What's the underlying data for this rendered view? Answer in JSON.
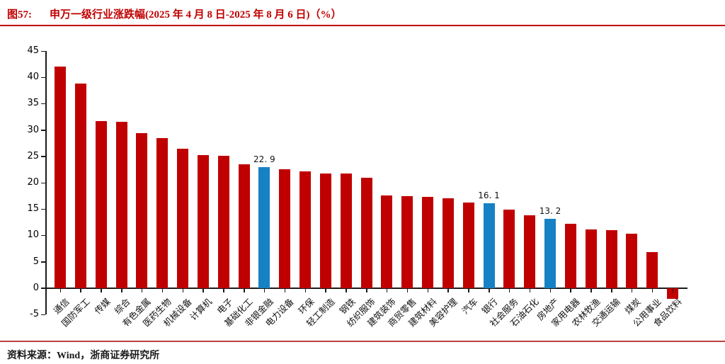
{
  "header": {
    "figure_label": "图57:",
    "title": "申万一级行业涨跌幅(2025 年 4 月 8 日-2025 年 8 月 6 日)（%）"
  },
  "footer": {
    "source": "资料来源：Wind，浙商证券研究所"
  },
  "colors": {
    "bar_red": "#C00000",
    "bar_blue": "#1681C4",
    "title_red": "#C00000",
    "top_rule": "#C00000",
    "bottom_rule": "#BE4040",
    "axis": "#1a1a1a"
  },
  "chart_data": {
    "type": "bar",
    "title": "申万一级行业涨跌幅(2025年4月8日-2025年8月6日)(%)",
    "xlabel": "",
    "ylabel": "",
    "ylim": [
      -5,
      45
    ],
    "ytick_step": 5,
    "grid": false,
    "legend": "none",
    "categories": [
      "通信",
      "国防军工",
      "传媒",
      "综合",
      "有色金属",
      "医药生物",
      "机械设备",
      "计算机",
      "电子",
      "基础化工",
      "非银金融",
      "电力设备",
      "环保",
      "轻工制造",
      "钢铁",
      "纺织服饰",
      "建筑装饰",
      "商贸零售",
      "建筑材料",
      "美容护理",
      "汽车",
      "银行",
      "社会服务",
      "石油石化",
      "房地产",
      "家用电器",
      "农林牧渔",
      "交通运输",
      "煤炭",
      "公用事业",
      "食品饮料"
    ],
    "values": [
      42.0,
      38.8,
      31.7,
      31.6,
      29.4,
      28.5,
      26.4,
      25.2,
      25.1,
      23.5,
      22.9,
      22.5,
      22.1,
      21.8,
      21.7,
      21.0,
      17.6,
      17.4,
      17.3,
      17.0,
      16.3,
      16.1,
      14.9,
      13.8,
      13.2,
      12.2,
      11.1,
      11.0,
      10.3,
      6.8,
      -2.0
    ],
    "highlight_indices": [
      10,
      21,
      24
    ],
    "data_labels": {
      "10": "22. 9",
      "21": "16. 1",
      "24": "13. 2"
    }
  }
}
